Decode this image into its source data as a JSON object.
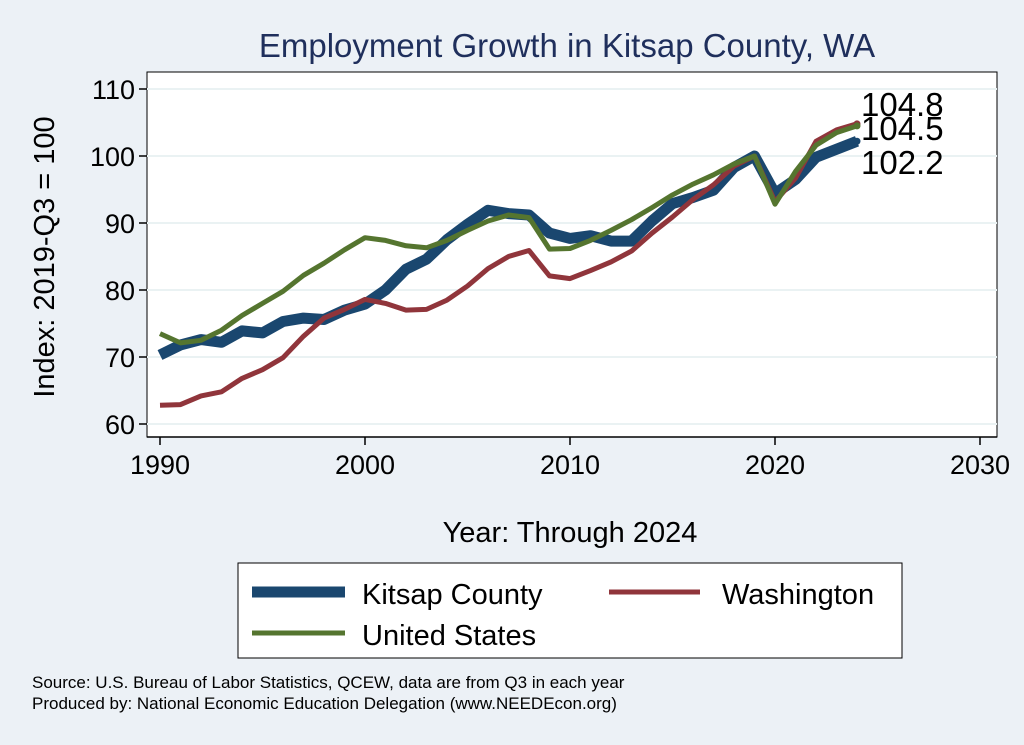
{
  "chart_data": {
    "type": "line",
    "title": "Employment Growth in Kitsap County, WA",
    "xlabel": "Year: Through 2024",
    "ylabel": "Index: 2019-Q3 = 100",
    "xlim": [
      1990,
      2030
    ],
    "ylim": [
      60,
      110
    ],
    "x_ticks": [
      "1990",
      "2000",
      "2010",
      "2020",
      "2030"
    ],
    "y_ticks": [
      "60",
      "70",
      "80",
      "90",
      "100",
      "110"
    ],
    "grid": true,
    "legend_position": "bottom",
    "x": [
      1990,
      1991,
      1992,
      1993,
      1994,
      1995,
      1996,
      1997,
      1998,
      1999,
      2000,
      2001,
      2002,
      2003,
      2004,
      2005,
      2006,
      2007,
      2008,
      2009,
      2010,
      2011,
      2012,
      2013,
      2014,
      2015,
      2016,
      2017,
      2018,
      2019,
      2020,
      2021,
      2022,
      2023,
      2024
    ],
    "series": [
      {
        "name": "Kitsap  County",
        "color": "#1a476f",
        "values": [
          70.3,
          71.8,
          72.6,
          72.2,
          73.9,
          73.6,
          75.3,
          75.8,
          75.6,
          77.0,
          77.9,
          80.0,
          83.1,
          84.6,
          87.5,
          89.8,
          91.9,
          91.4,
          91.2,
          88.5,
          87.7,
          88.1,
          87.3,
          87.3,
          90.3,
          92.9,
          93.8,
          94.9,
          98.3,
          100.0,
          94.4,
          96.5,
          99.8,
          101.0,
          102.2
        ],
        "end_label": "102.2"
      },
      {
        "name": "Washington",
        "color": "#90353b",
        "values": [
          62.8,
          62.9,
          64.2,
          64.8,
          66.8,
          68.1,
          69.9,
          73.1,
          75.8,
          77.1,
          78.6,
          78.0,
          77.0,
          77.1,
          78.5,
          80.6,
          83.2,
          85.0,
          85.9,
          82.1,
          81.7,
          82.9,
          84.2,
          85.8,
          88.5,
          90.9,
          93.5,
          95.7,
          98.5,
          100.0,
          93.2,
          96.7,
          102.2,
          103.9,
          104.8
        ],
        "end_label": "104.8"
      },
      {
        "name": "United States",
        "color": "#55752f",
        "values": [
          73.5,
          72.1,
          72.5,
          74.0,
          76.2,
          78.0,
          79.8,
          82.2,
          84.0,
          86.0,
          87.8,
          87.4,
          86.6,
          86.3,
          87.4,
          88.9,
          90.3,
          91.2,
          90.8,
          86.1,
          86.2,
          87.4,
          88.9,
          90.5,
          92.3,
          94.2,
          95.8,
          97.2,
          98.8,
          100.0,
          92.8,
          97.7,
          101.6,
          103.5,
          104.5
        ],
        "end_label": "104.5"
      }
    ]
  },
  "footer": {
    "source": "Source: U.S. Bureau of Labor Statistics, QCEW, data are from Q3 in each year",
    "produced_by": "Produced by: National Economic Education Delegation (www.NEEDEcon.org)"
  }
}
